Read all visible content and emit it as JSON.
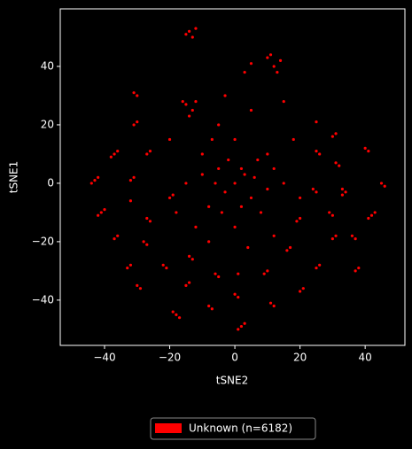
{
  "chart_data": {
    "type": "scatter",
    "xlabel": "tSNE2",
    "ylabel": "tSNE1",
    "x": [
      -14,
      -13,
      -12,
      -15,
      -43,
      -42,
      -44,
      -41,
      -40,
      -42,
      -37,
      -36,
      -38,
      -37,
      -36,
      -31,
      -30,
      -31,
      -30,
      -32,
      -31,
      -32,
      -33,
      -32,
      -30,
      -29,
      -27,
      -26,
      -27,
      -26,
      -27,
      -28,
      -22,
      -21,
      -20,
      -19,
      -18,
      -19,
      -17,
      -15,
      -14,
      -14,
      -13,
      -8,
      -7,
      -6,
      -5,
      0,
      1,
      1,
      2,
      3,
      1,
      9,
      10,
      11,
      12,
      16,
      17,
      20,
      21,
      20,
      19,
      24,
      25,
      26,
      25,
      29,
      30,
      30,
      31,
      31,
      32,
      31,
      30,
      26,
      25,
      25,
      33,
      34,
      33,
      37,
      36,
      38,
      37,
      40,
      41,
      42,
      43,
      41,
      45,
      46,
      11,
      12,
      13,
      10,
      14,
      5,
      3,
      -15,
      -13,
      -16,
      -12,
      -14,
      0,
      -5,
      5,
      -10,
      10,
      -8,
      8,
      0,
      0,
      -15,
      15,
      -3,
      3,
      -6,
      6,
      -2,
      2,
      -12,
      12,
      -5,
      5,
      -20,
      18,
      15,
      -3,
      -8,
      4,
      -18,
      20,
      10,
      -10,
      2,
      -4,
      7,
      -7,
      12
    ],
    "series": [
      {
        "name": "Unknown (n=6182)",
        "color": "#ff0000",
        "values": [
          52,
          50,
          53,
          51,
          1,
          2,
          0,
          -10,
          -9,
          -11,
          10,
          11,
          9,
          -19,
          -18,
          31,
          30,
          20,
          21,
          1,
          2,
          -6,
          -29,
          -28,
          -35,
          -36,
          10,
          11,
          -12,
          -13,
          -21,
          -20,
          -28,
          -29,
          -5,
          -4,
          -45,
          -44,
          -46,
          -35,
          -34,
          -25,
          -26,
          -42,
          -43,
          -31,
          -32,
          -38,
          -39,
          -31,
          -49,
          -48,
          -50,
          -31,
          -30,
          -41,
          -42,
          -23,
          -22,
          -37,
          -36,
          -12,
          -13,
          -2,
          -3,
          -28,
          -29,
          -10,
          -11,
          -19,
          -18,
          7,
          6,
          17,
          16,
          10,
          11,
          21,
          -2,
          -3,
          -4,
          -19,
          -18,
          -29,
          -30,
          12,
          11,
          -11,
          -10,
          -12,
          0,
          -1,
          44,
          40,
          38,
          43,
          42,
          41,
          38,
          27,
          25,
          28,
          28,
          23,
          0,
          5,
          -5,
          10,
          10,
          -8,
          -10,
          15,
          -15,
          0,
          0,
          -3,
          3,
          0,
          2,
          8,
          -8,
          -15,
          -18,
          20,
          25,
          15,
          15,
          28,
          30,
          -20,
          -22,
          -10,
          -5,
          -2,
          3,
          5,
          -10,
          8,
          15,
          5
        ]
      }
    ],
    "xlim": [
      -53.6,
      52.2
    ],
    "ylim": [
      -55.5,
      59.7
    ],
    "xticks": [
      {
        "value": -40,
        "label": "−40"
      },
      {
        "value": -20,
        "label": "−20"
      },
      0,
      20,
      40
    ],
    "yticks": [
      {
        "value": -40,
        "label": "−40"
      },
      {
        "value": -20,
        "label": "−20"
      },
      0,
      20,
      40
    ],
    "grid": false,
    "legend": "lower center"
  }
}
